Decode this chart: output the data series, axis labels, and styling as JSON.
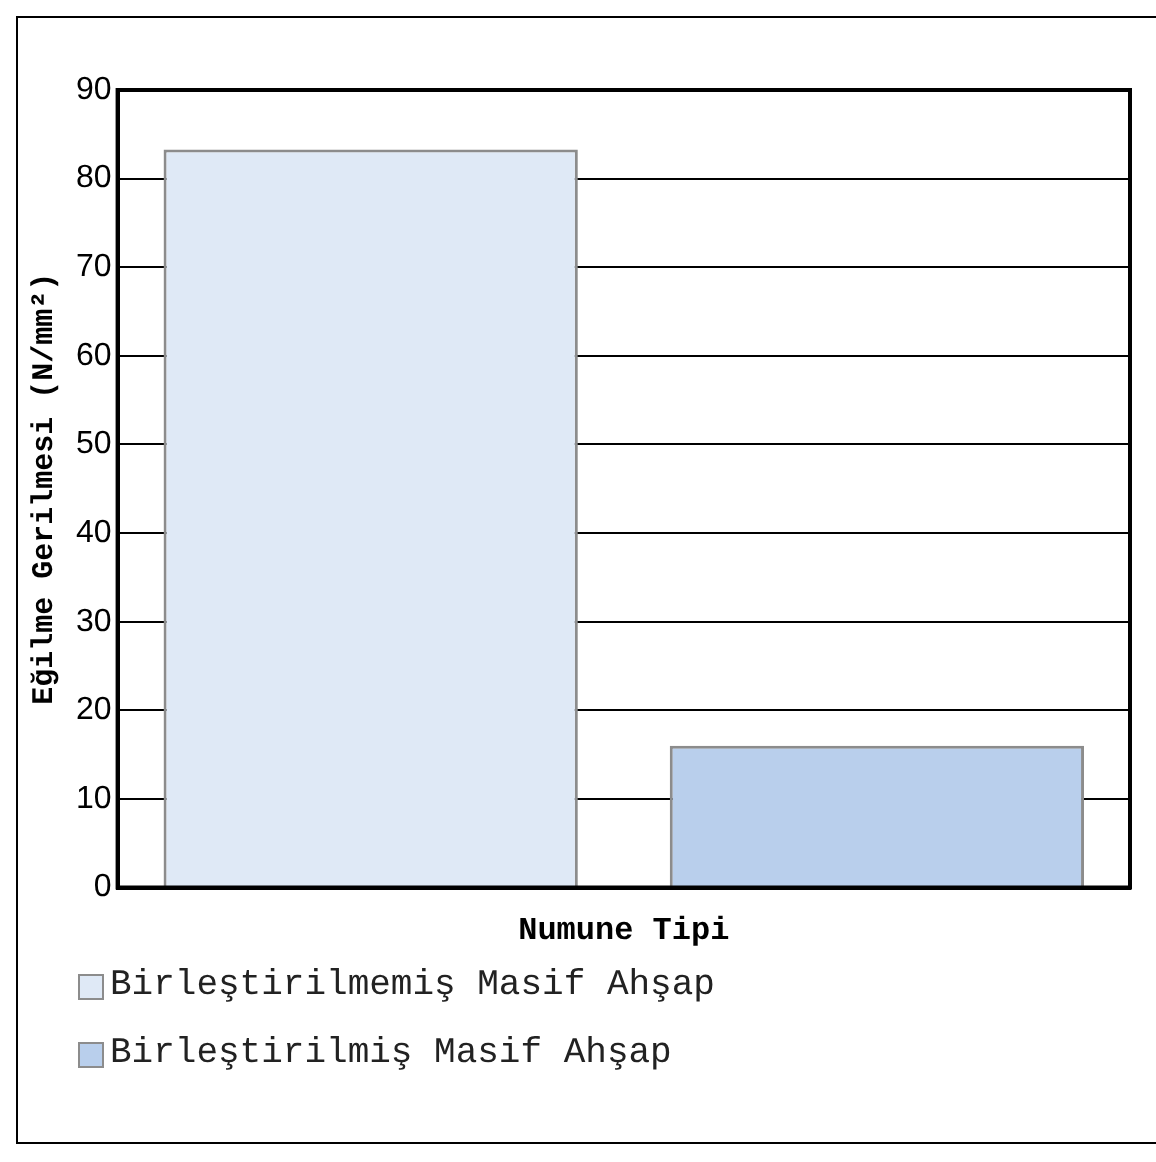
{
  "chart_data": {
    "type": "bar",
    "xlabel": "Numune Tipi",
    "ylabel": "Eğilme Gerilmesi (N/mm²)",
    "categories": [
      null,
      null
    ],
    "series": [
      {
        "name": "Birleştirilmemiş Masif Ahşap",
        "color": "#dfe9f6",
        "values": [
          83.3,
          null
        ]
      },
      {
        "name": "Birleştirilmiş Masif Ahşap",
        "color": "#b9cfec",
        "values": [
          null,
          16
        ]
      }
    ],
    "ylim": [
      0,
      90
    ],
    "yticks": [
      0,
      10,
      20,
      30,
      40,
      50,
      60,
      70,
      80,
      90
    ],
    "grid": "y",
    "legend": "bottom"
  }
}
